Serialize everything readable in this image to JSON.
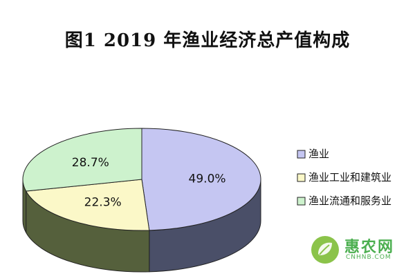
{
  "chart_data": {
    "type": "pie",
    "title": "图1   2019 年渔业经济总产值构成",
    "slices": [
      {
        "name": "渔业",
        "value": 49.0,
        "label": "49.0%",
        "color": "#c5c6f2"
      },
      {
        "name": "渔业工业和建筑业",
        "value": 22.3,
        "label": "22.3%",
        "color": "#fbf8c8"
      },
      {
        "name": "渔业流通和服务业",
        "value": 28.7,
        "label": "28.7%",
        "color": "#cdf2cd"
      }
    ],
    "side_colors": [
      "#4a4f68",
      "#55603c",
      "#55603c"
    ],
    "legend_position": "right",
    "style": "3d-pie"
  },
  "watermark": {
    "name": "惠农网",
    "domain": "CNHNB.COM",
    "color": "#4caf50"
  }
}
